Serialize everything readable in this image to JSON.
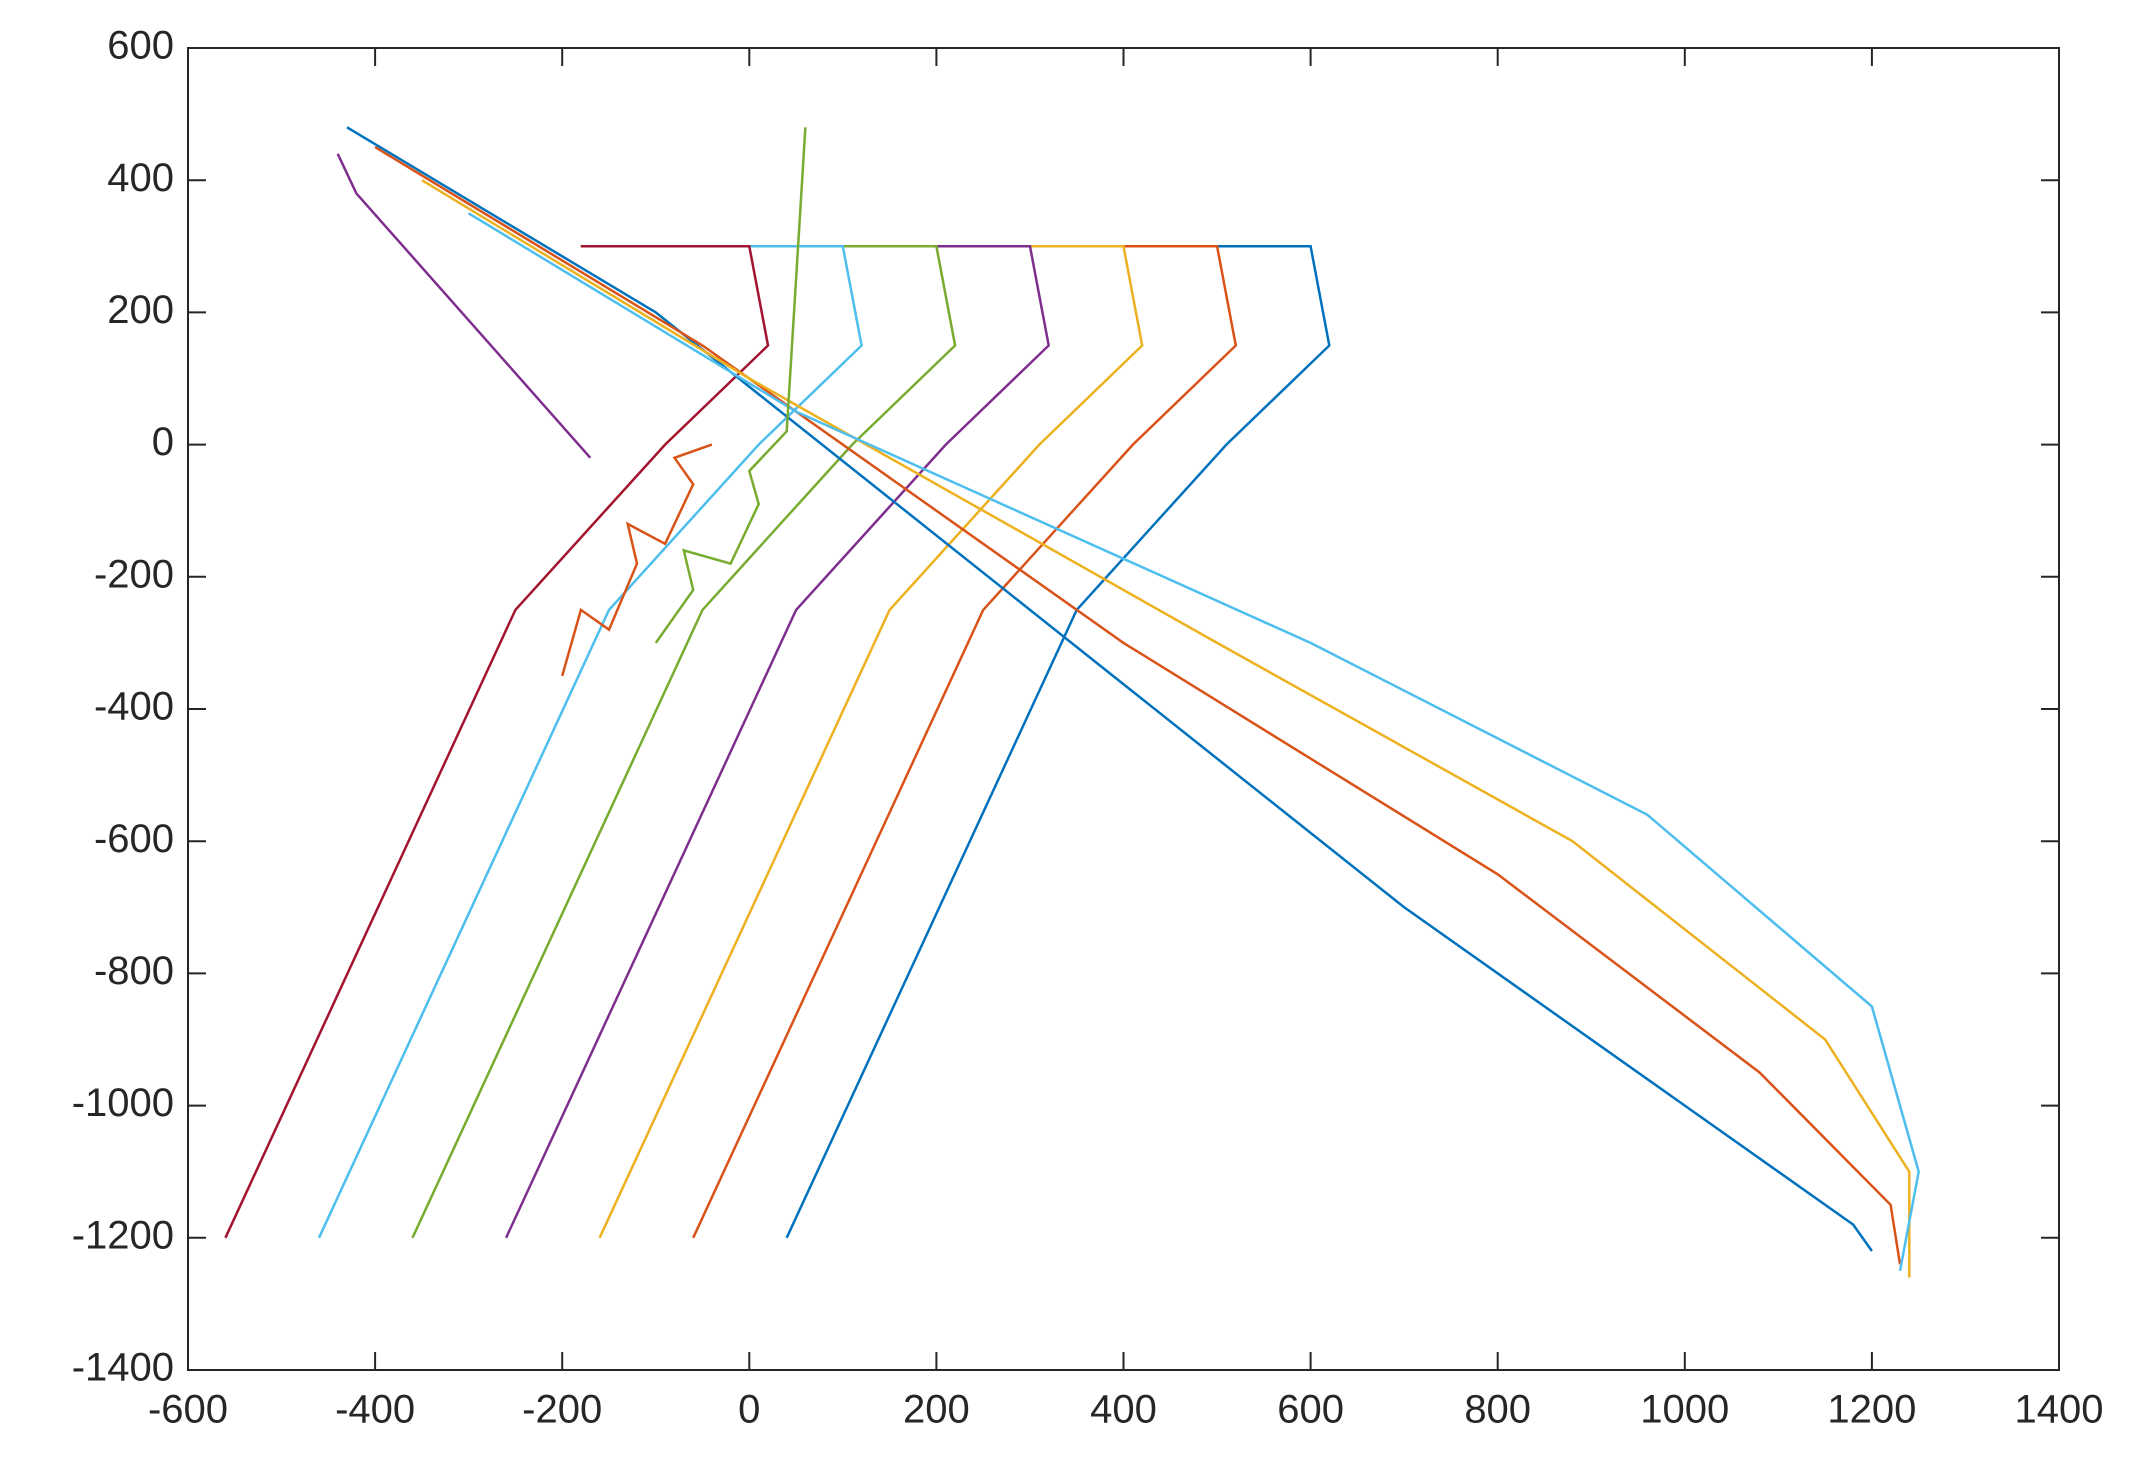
{
  "chart_data": {
    "type": "line",
    "xlim": [
      -600,
      1400
    ],
    "xticks": [
      -600,
      -400,
      -200,
      0,
      200,
      400,
      600,
      800,
      1000,
      1200,
      1400
    ],
    "ylim": [
      -1400,
      600
    ],
    "yticks": [
      -1400,
      -1200,
      -1000,
      -800,
      -600,
      -400,
      -200,
      0,
      200,
      400,
      600
    ],
    "box": true,
    "series": [
      {
        "color": "#0072BD",
        "x": [
          -180,
          600,
          620,
          510,
          350,
          40
        ],
        "y": [
          300,
          300,
          150,
          0,
          -250,
          -1200
        ]
      },
      {
        "color": "#D95319",
        "x": [
          -180,
          500,
          520,
          410,
          250,
          -60
        ],
        "y": [
          300,
          300,
          150,
          0,
          -250,
          -1200
        ]
      },
      {
        "color": "#EDB120",
        "x": [
          -180,
          400,
          420,
          310,
          150,
          -160
        ],
        "y": [
          300,
          300,
          150,
          0,
          -250,
          -1200
        ]
      },
      {
        "color": "#7E2F8E",
        "x": [
          -180,
          300,
          320,
          210,
          50,
          -260
        ],
        "y": [
          300,
          300,
          150,
          0,
          -250,
          -1200
        ]
      },
      {
        "color": "#77AC30",
        "x": [
          -180,
          200,
          220,
          110,
          -50,
          -360
        ],
        "y": [
          300,
          300,
          150,
          0,
          -250,
          -1200
        ]
      },
      {
        "color": "#4DBEEE",
        "x": [
          -180,
          100,
          120,
          10,
          -150,
          -460
        ],
        "y": [
          300,
          300,
          150,
          0,
          -250,
          -1200
        ]
      },
      {
        "color": "#A2142F",
        "x": [
          -180,
          0,
          20,
          -90,
          -250,
          -560
        ],
        "y": [
          300,
          300,
          150,
          0,
          -250,
          -1200
        ]
      },
      {
        "color": "#0072BD",
        "x": [
          -430,
          -100,
          300,
          700,
          1000,
          1180,
          1200
        ],
        "y": [
          480,
          200,
          -250,
          -700,
          -1000,
          -1180,
          -1220
        ]
      },
      {
        "color": "#D95319",
        "x": [
          -400,
          -50,
          400,
          800,
          1080,
          1220,
          1230
        ],
        "y": [
          450,
          150,
          -300,
          -650,
          -950,
          -1150,
          -1240
        ]
      },
      {
        "color": "#EDB120",
        "x": [
          -350,
          0,
          500,
          880,
          1150,
          1240,
          1240
        ],
        "y": [
          400,
          100,
          -300,
          -600,
          -900,
          -1100,
          -1260
        ]
      },
      {
        "color": "#4DBEEE",
        "x": [
          -300,
          50,
          600,
          960,
          1200,
          1250,
          1230
        ],
        "y": [
          350,
          50,
          -300,
          -560,
          -850,
          -1100,
          -1250
        ]
      },
      {
        "color": "#7E2F8E",
        "x": [
          -440,
          -420,
          -170
        ],
        "y": [
          440,
          380,
          -20
        ]
      },
      {
        "color": "#D95319",
        "x": [
          -200,
          -180,
          -150,
          -120,
          -130,
          -90,
          -60,
          -80,
          -40
        ],
        "y": [
          -350,
          -250,
          -280,
          -180,
          -120,
          -150,
          -60,
          -20,
          0
        ]
      },
      {
        "color": "#77AC30",
        "x": [
          -100,
          -60,
          -70,
          -20,
          10,
          0,
          40,
          60
        ],
        "y": [
          -300,
          -220,
          -160,
          -180,
          -90,
          -40,
          20,
          480
        ]
      }
    ]
  }
}
